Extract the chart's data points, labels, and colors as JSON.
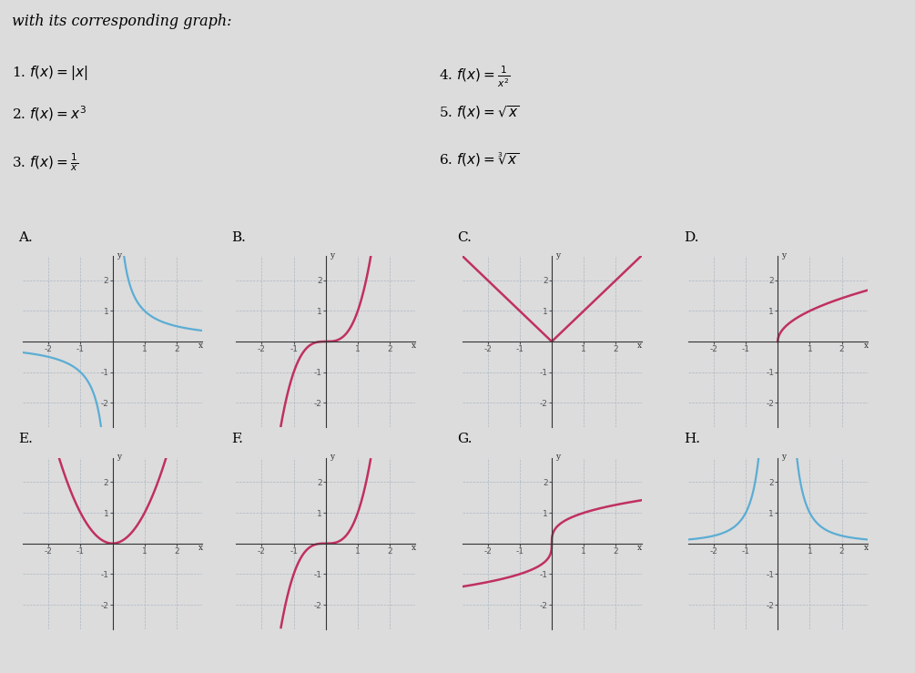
{
  "bg_color": "#dcdcdc",
  "grid_color": "#a8b4c0",
  "axis_color": "#333333",
  "blue_color": "#5badd4",
  "red_color": "#c03060",
  "tick_color": "#555555",
  "header": "with its corresponding graph:",
  "func_labels_left": [
    "1. $f(x) = |x|$",
    "2. $f(x) = x^3$",
    "3. $f(x) = \\frac{1}{x}$"
  ],
  "func_labels_right": [
    "4. $f(x) = \\frac{1}{x^2}$",
    "5. $f(x) = \\sqrt{x}$",
    "6. $f(x) = \\sqrt[3]{x}$"
  ],
  "graph_labels": [
    "A",
    "B",
    "C",
    "D",
    "E",
    "F",
    "G",
    "H"
  ],
  "graph_functions": [
    "inv_x",
    "x3_linear",
    "abs_x",
    "sqrt_x",
    "x2_parabola",
    "x3_scurve",
    "cbrt_x",
    "inv_x2"
  ],
  "graph_colors": [
    "blue",
    "red",
    "red",
    "red",
    "red",
    "red",
    "red",
    "blue"
  ],
  "xlim": [
    -2.8,
    2.8
  ],
  "ylim": [
    -2.8,
    2.8
  ]
}
